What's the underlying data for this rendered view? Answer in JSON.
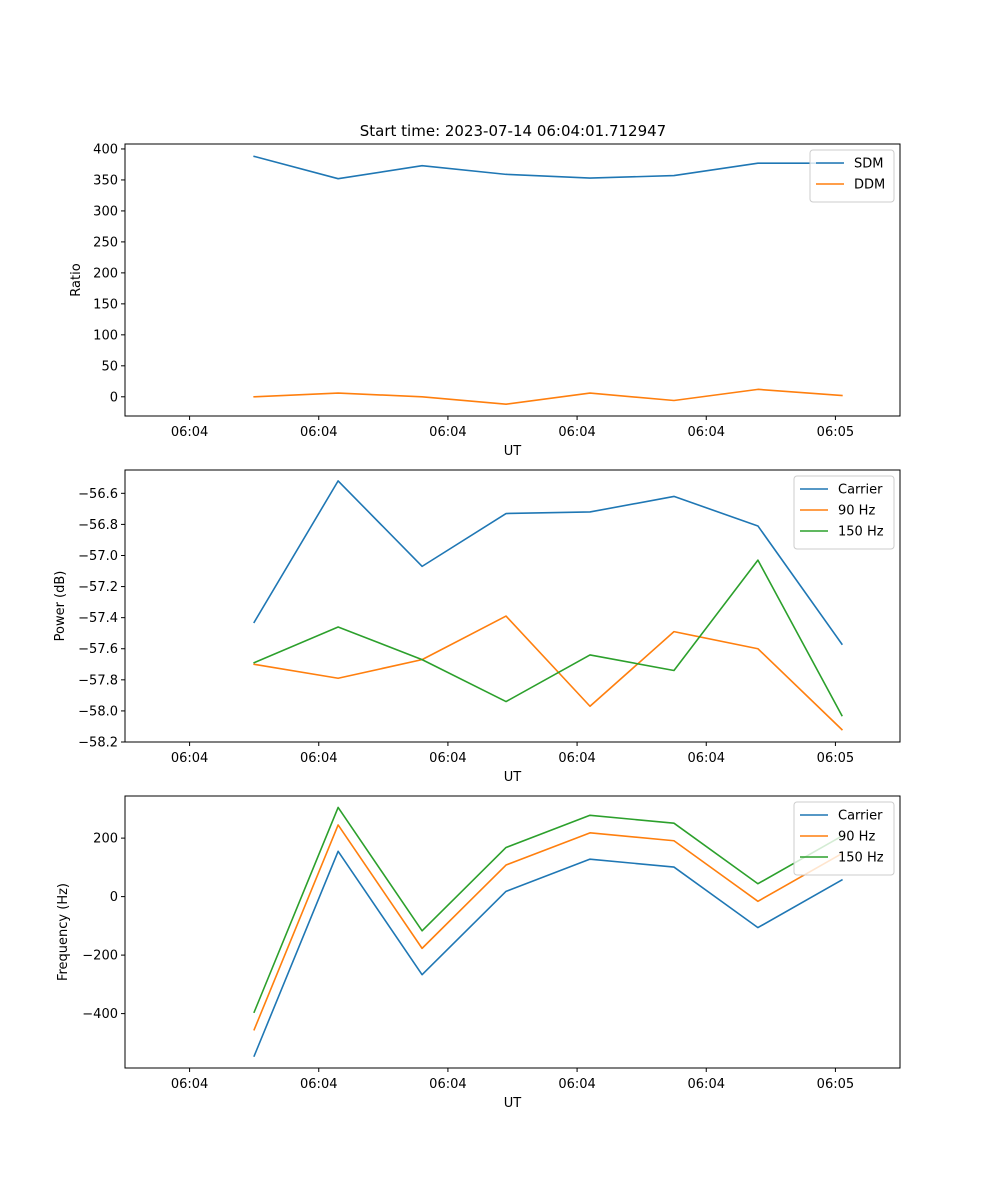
{
  "figure": {
    "title": "Start time: 2023-07-14 06:04:01.712947"
  },
  "colors": {
    "blue": "#1f77b4",
    "orange": "#ff7f0e",
    "green": "#2ca02c"
  },
  "chart_data": [
    {
      "type": "line",
      "title": "Start time: 2023-07-14 06:04:01.712947",
      "xlabel": "UT",
      "ylabel": "Ratio",
      "xlim": [
        -0.5,
        5.5
      ],
      "xticks": [
        0,
        1,
        2,
        3,
        4,
        5
      ],
      "xtick_labels": [
        "06:04",
        "06:04",
        "06:04",
        "06:04",
        "06:04",
        "06:05"
      ],
      "x": [
        0.5,
        1.15,
        1.8,
        2.45,
        3.1,
        3.75,
        4.4,
        5.05
      ],
      "ylim": [
        -31,
        408
      ],
      "yticks": [
        0,
        50,
        100,
        150,
        200,
        250,
        300,
        350,
        400
      ],
      "ytick_labels": [
        "0",
        "50",
        "100",
        "150",
        "200",
        "250",
        "300",
        "350",
        "400"
      ],
      "legend": "top-right",
      "series": [
        {
          "name": "SDM",
          "color": "#1f77b4",
          "values": [
            388,
            352,
            373,
            359,
            353,
            357,
            377,
            377
          ]
        },
        {
          "name": "DDM",
          "color": "#ff7f0e",
          "values": [
            0,
            6,
            0,
            -12,
            6,
            -6,
            12,
            2
          ]
        }
      ]
    },
    {
      "type": "line",
      "title": "",
      "xlabel": "UT",
      "ylabel": "Power (dB)",
      "xlim": [
        -0.5,
        5.5
      ],
      "xticks": [
        0,
        1,
        2,
        3,
        4,
        5
      ],
      "xtick_labels": [
        "06:04",
        "06:04",
        "06:04",
        "06:04",
        "06:04",
        "06:05"
      ],
      "x": [
        0.5,
        1.15,
        1.8,
        2.45,
        3.1,
        3.75,
        4.4,
        5.05
      ],
      "ylim": [
        -58.2,
        -56.45
      ],
      "yticks": [
        -58.2,
        -58.0,
        -57.8,
        -57.6,
        -57.4,
        -57.2,
        -57.0,
        -56.8,
        -56.6
      ],
      "ytick_labels": [
        "−58.2",
        "−58.0",
        "−57.8",
        "−57.6",
        "−57.4",
        "−57.2",
        "−57.0",
        "−56.8",
        "−56.6"
      ],
      "legend": "top-right",
      "series": [
        {
          "name": "Carrier",
          "color": "#1f77b4",
          "values": [
            -57.43,
            -56.52,
            -57.07,
            -56.73,
            -56.72,
            -56.62,
            -56.81,
            -57.57
          ]
        },
        {
          "name": "90 Hz",
          "color": "#ff7f0e",
          "values": [
            -57.7,
            -57.79,
            -57.67,
            -57.39,
            -57.97,
            -57.49,
            -57.6,
            -58.12
          ]
        },
        {
          "name": "150 Hz",
          "color": "#2ca02c",
          "values": [
            -57.69,
            -57.46,
            -57.67,
            -57.94,
            -57.64,
            -57.74,
            -57.03,
            -58.03
          ]
        }
      ]
    },
    {
      "type": "line",
      "title": "",
      "xlabel": "UT",
      "ylabel": "Frequency (Hz)",
      "xlim": [
        -0.5,
        5.5
      ],
      "xticks": [
        0,
        1,
        2,
        3,
        4,
        5
      ],
      "xtick_labels": [
        "06:04",
        "06:04",
        "06:04",
        "06:04",
        "06:04",
        "06:05"
      ],
      "x": [
        0.5,
        1.15,
        1.8,
        2.45,
        3.1,
        3.75,
        4.4,
        5.05
      ],
      "ylim": [
        -586,
        344
      ],
      "yticks": [
        -400,
        -200,
        0,
        200
      ],
      "ytick_labels": [
        "−400",
        "−200",
        "0",
        "200"
      ],
      "legend": "top-right",
      "series": [
        {
          "name": "Carrier",
          "color": "#1f77b4",
          "values": [
            -545,
            155,
            -267,
            18,
            128,
            101,
            -106,
            57
          ]
        },
        {
          "name": "90 Hz",
          "color": "#ff7f0e",
          "values": [
            -455,
            245,
            -177,
            108,
            218,
            191,
            -16,
            147
          ]
        },
        {
          "name": "150 Hz",
          "color": "#2ca02c",
          "values": [
            -395,
            305,
            -117,
            168,
            278,
            251,
            44,
            207
          ]
        }
      ]
    }
  ]
}
